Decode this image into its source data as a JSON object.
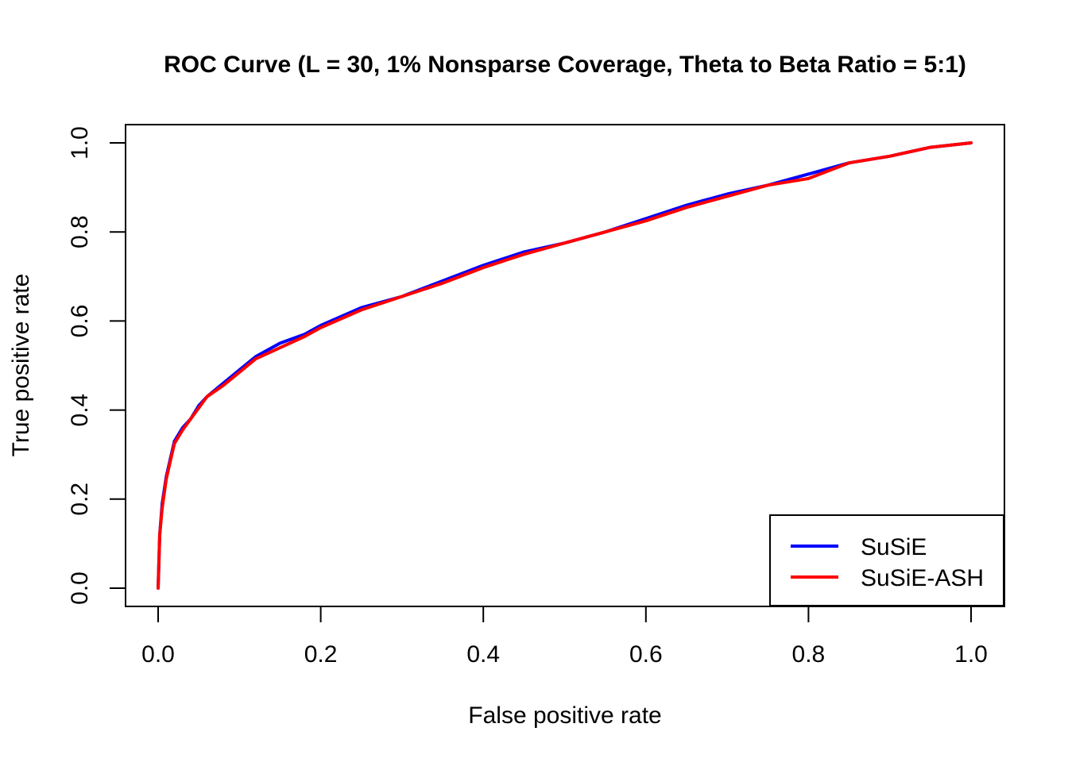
{
  "chart_data": {
    "type": "line",
    "title": "ROC Curve (L = 30, 1% Nonsparse Coverage, Theta to Beta Ratio = 5:1)",
    "xlabel": "False positive rate",
    "ylabel": "True positive rate",
    "xlim": [
      0,
      1
    ],
    "ylim": [
      0,
      1
    ],
    "xticks": [
      "0.0",
      "0.2",
      "0.4",
      "0.6",
      "0.8",
      "1.0"
    ],
    "yticks": [
      "0.0",
      "0.2",
      "0.4",
      "0.6",
      "0.8",
      "1.0"
    ],
    "grid": false,
    "legend_position": "bottom-right",
    "series": [
      {
        "name": "SuSiE",
        "color": "#0000FF",
        "x": [
          0.0,
          0.002,
          0.005,
          0.01,
          0.015,
          0.02,
          0.03,
          0.04,
          0.05,
          0.06,
          0.08,
          0.1,
          0.12,
          0.15,
          0.18,
          0.2,
          0.25,
          0.3,
          0.35,
          0.4,
          0.45,
          0.5,
          0.55,
          0.6,
          0.65,
          0.7,
          0.75,
          0.8,
          0.85,
          0.9,
          0.95,
          1.0
        ],
        "y": [
          0.0,
          0.12,
          0.19,
          0.25,
          0.29,
          0.33,
          0.36,
          0.38,
          0.41,
          0.43,
          0.46,
          0.49,
          0.52,
          0.55,
          0.57,
          0.59,
          0.63,
          0.655,
          0.69,
          0.725,
          0.755,
          0.775,
          0.8,
          0.83,
          0.86,
          0.885,
          0.905,
          0.93,
          0.955,
          0.97,
          0.99,
          1.0
        ]
      },
      {
        "name": "SuSiE-ASH",
        "color": "#FF0000",
        "x": [
          0.0,
          0.002,
          0.005,
          0.01,
          0.015,
          0.02,
          0.03,
          0.04,
          0.05,
          0.06,
          0.08,
          0.1,
          0.12,
          0.15,
          0.18,
          0.2,
          0.25,
          0.3,
          0.35,
          0.4,
          0.45,
          0.5,
          0.55,
          0.6,
          0.65,
          0.7,
          0.75,
          0.8,
          0.85,
          0.9,
          0.95,
          1.0
        ],
        "y": [
          0.0,
          0.12,
          0.18,
          0.245,
          0.285,
          0.325,
          0.355,
          0.38,
          0.405,
          0.43,
          0.455,
          0.485,
          0.515,
          0.54,
          0.565,
          0.585,
          0.625,
          0.655,
          0.685,
          0.72,
          0.75,
          0.775,
          0.8,
          0.825,
          0.855,
          0.88,
          0.905,
          0.92,
          0.955,
          0.97,
          0.99,
          1.0
        ]
      }
    ]
  }
}
